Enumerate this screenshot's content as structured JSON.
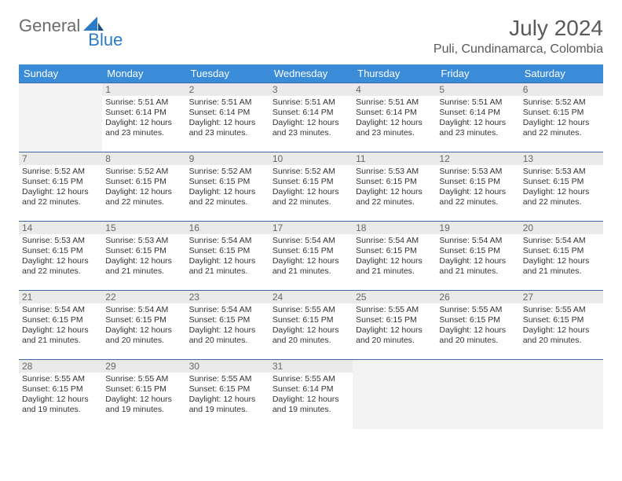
{
  "brand": {
    "part1": "General",
    "part2": "Blue"
  },
  "title": "July 2024",
  "location": "Puli, Cundinamarca, Colombia",
  "colors": {
    "header_bg": "#3a8bd8",
    "header_text": "#ffffff",
    "row_border": "#3a6aa8",
    "daynum_bg": "#eaeaea",
    "logo_gray": "#6b6b6b",
    "logo_blue": "#2c7bc4"
  },
  "day_headers": [
    "Sunday",
    "Monday",
    "Tuesday",
    "Wednesday",
    "Thursday",
    "Friday",
    "Saturday"
  ],
  "weeks": [
    [
      null,
      {
        "n": "1",
        "sr": "5:51 AM",
        "ss": "6:14 PM",
        "dl": "12 hours and 23 minutes."
      },
      {
        "n": "2",
        "sr": "5:51 AM",
        "ss": "6:14 PM",
        "dl": "12 hours and 23 minutes."
      },
      {
        "n": "3",
        "sr": "5:51 AM",
        "ss": "6:14 PM",
        "dl": "12 hours and 23 minutes."
      },
      {
        "n": "4",
        "sr": "5:51 AM",
        "ss": "6:14 PM",
        "dl": "12 hours and 23 minutes."
      },
      {
        "n": "5",
        "sr": "5:51 AM",
        "ss": "6:14 PM",
        "dl": "12 hours and 23 minutes."
      },
      {
        "n": "6",
        "sr": "5:52 AM",
        "ss": "6:15 PM",
        "dl": "12 hours and 22 minutes."
      }
    ],
    [
      {
        "n": "7",
        "sr": "5:52 AM",
        "ss": "6:15 PM",
        "dl": "12 hours and 22 minutes."
      },
      {
        "n": "8",
        "sr": "5:52 AM",
        "ss": "6:15 PM",
        "dl": "12 hours and 22 minutes."
      },
      {
        "n": "9",
        "sr": "5:52 AM",
        "ss": "6:15 PM",
        "dl": "12 hours and 22 minutes."
      },
      {
        "n": "10",
        "sr": "5:52 AM",
        "ss": "6:15 PM",
        "dl": "12 hours and 22 minutes."
      },
      {
        "n": "11",
        "sr": "5:53 AM",
        "ss": "6:15 PM",
        "dl": "12 hours and 22 minutes."
      },
      {
        "n": "12",
        "sr": "5:53 AM",
        "ss": "6:15 PM",
        "dl": "12 hours and 22 minutes."
      },
      {
        "n": "13",
        "sr": "5:53 AM",
        "ss": "6:15 PM",
        "dl": "12 hours and 22 minutes."
      }
    ],
    [
      {
        "n": "14",
        "sr": "5:53 AM",
        "ss": "6:15 PM",
        "dl": "12 hours and 22 minutes."
      },
      {
        "n": "15",
        "sr": "5:53 AM",
        "ss": "6:15 PM",
        "dl": "12 hours and 21 minutes."
      },
      {
        "n": "16",
        "sr": "5:54 AM",
        "ss": "6:15 PM",
        "dl": "12 hours and 21 minutes."
      },
      {
        "n": "17",
        "sr": "5:54 AM",
        "ss": "6:15 PM",
        "dl": "12 hours and 21 minutes."
      },
      {
        "n": "18",
        "sr": "5:54 AM",
        "ss": "6:15 PM",
        "dl": "12 hours and 21 minutes."
      },
      {
        "n": "19",
        "sr": "5:54 AM",
        "ss": "6:15 PM",
        "dl": "12 hours and 21 minutes."
      },
      {
        "n": "20",
        "sr": "5:54 AM",
        "ss": "6:15 PM",
        "dl": "12 hours and 21 minutes."
      }
    ],
    [
      {
        "n": "21",
        "sr": "5:54 AM",
        "ss": "6:15 PM",
        "dl": "12 hours and 21 minutes."
      },
      {
        "n": "22",
        "sr": "5:54 AM",
        "ss": "6:15 PM",
        "dl": "12 hours and 20 minutes."
      },
      {
        "n": "23",
        "sr": "5:54 AM",
        "ss": "6:15 PM",
        "dl": "12 hours and 20 minutes."
      },
      {
        "n": "24",
        "sr": "5:55 AM",
        "ss": "6:15 PM",
        "dl": "12 hours and 20 minutes."
      },
      {
        "n": "25",
        "sr": "5:55 AM",
        "ss": "6:15 PM",
        "dl": "12 hours and 20 minutes."
      },
      {
        "n": "26",
        "sr": "5:55 AM",
        "ss": "6:15 PM",
        "dl": "12 hours and 20 minutes."
      },
      {
        "n": "27",
        "sr": "5:55 AM",
        "ss": "6:15 PM",
        "dl": "12 hours and 20 minutes."
      }
    ],
    [
      {
        "n": "28",
        "sr": "5:55 AM",
        "ss": "6:15 PM",
        "dl": "12 hours and 19 minutes."
      },
      {
        "n": "29",
        "sr": "5:55 AM",
        "ss": "6:15 PM",
        "dl": "12 hours and 19 minutes."
      },
      {
        "n": "30",
        "sr": "5:55 AM",
        "ss": "6:15 PM",
        "dl": "12 hours and 19 minutes."
      },
      {
        "n": "31",
        "sr": "5:55 AM",
        "ss": "6:14 PM",
        "dl": "12 hours and 19 minutes."
      },
      null,
      null,
      null
    ]
  ],
  "labels": {
    "sunrise": "Sunrise:",
    "sunset": "Sunset:",
    "daylight": "Daylight:"
  }
}
